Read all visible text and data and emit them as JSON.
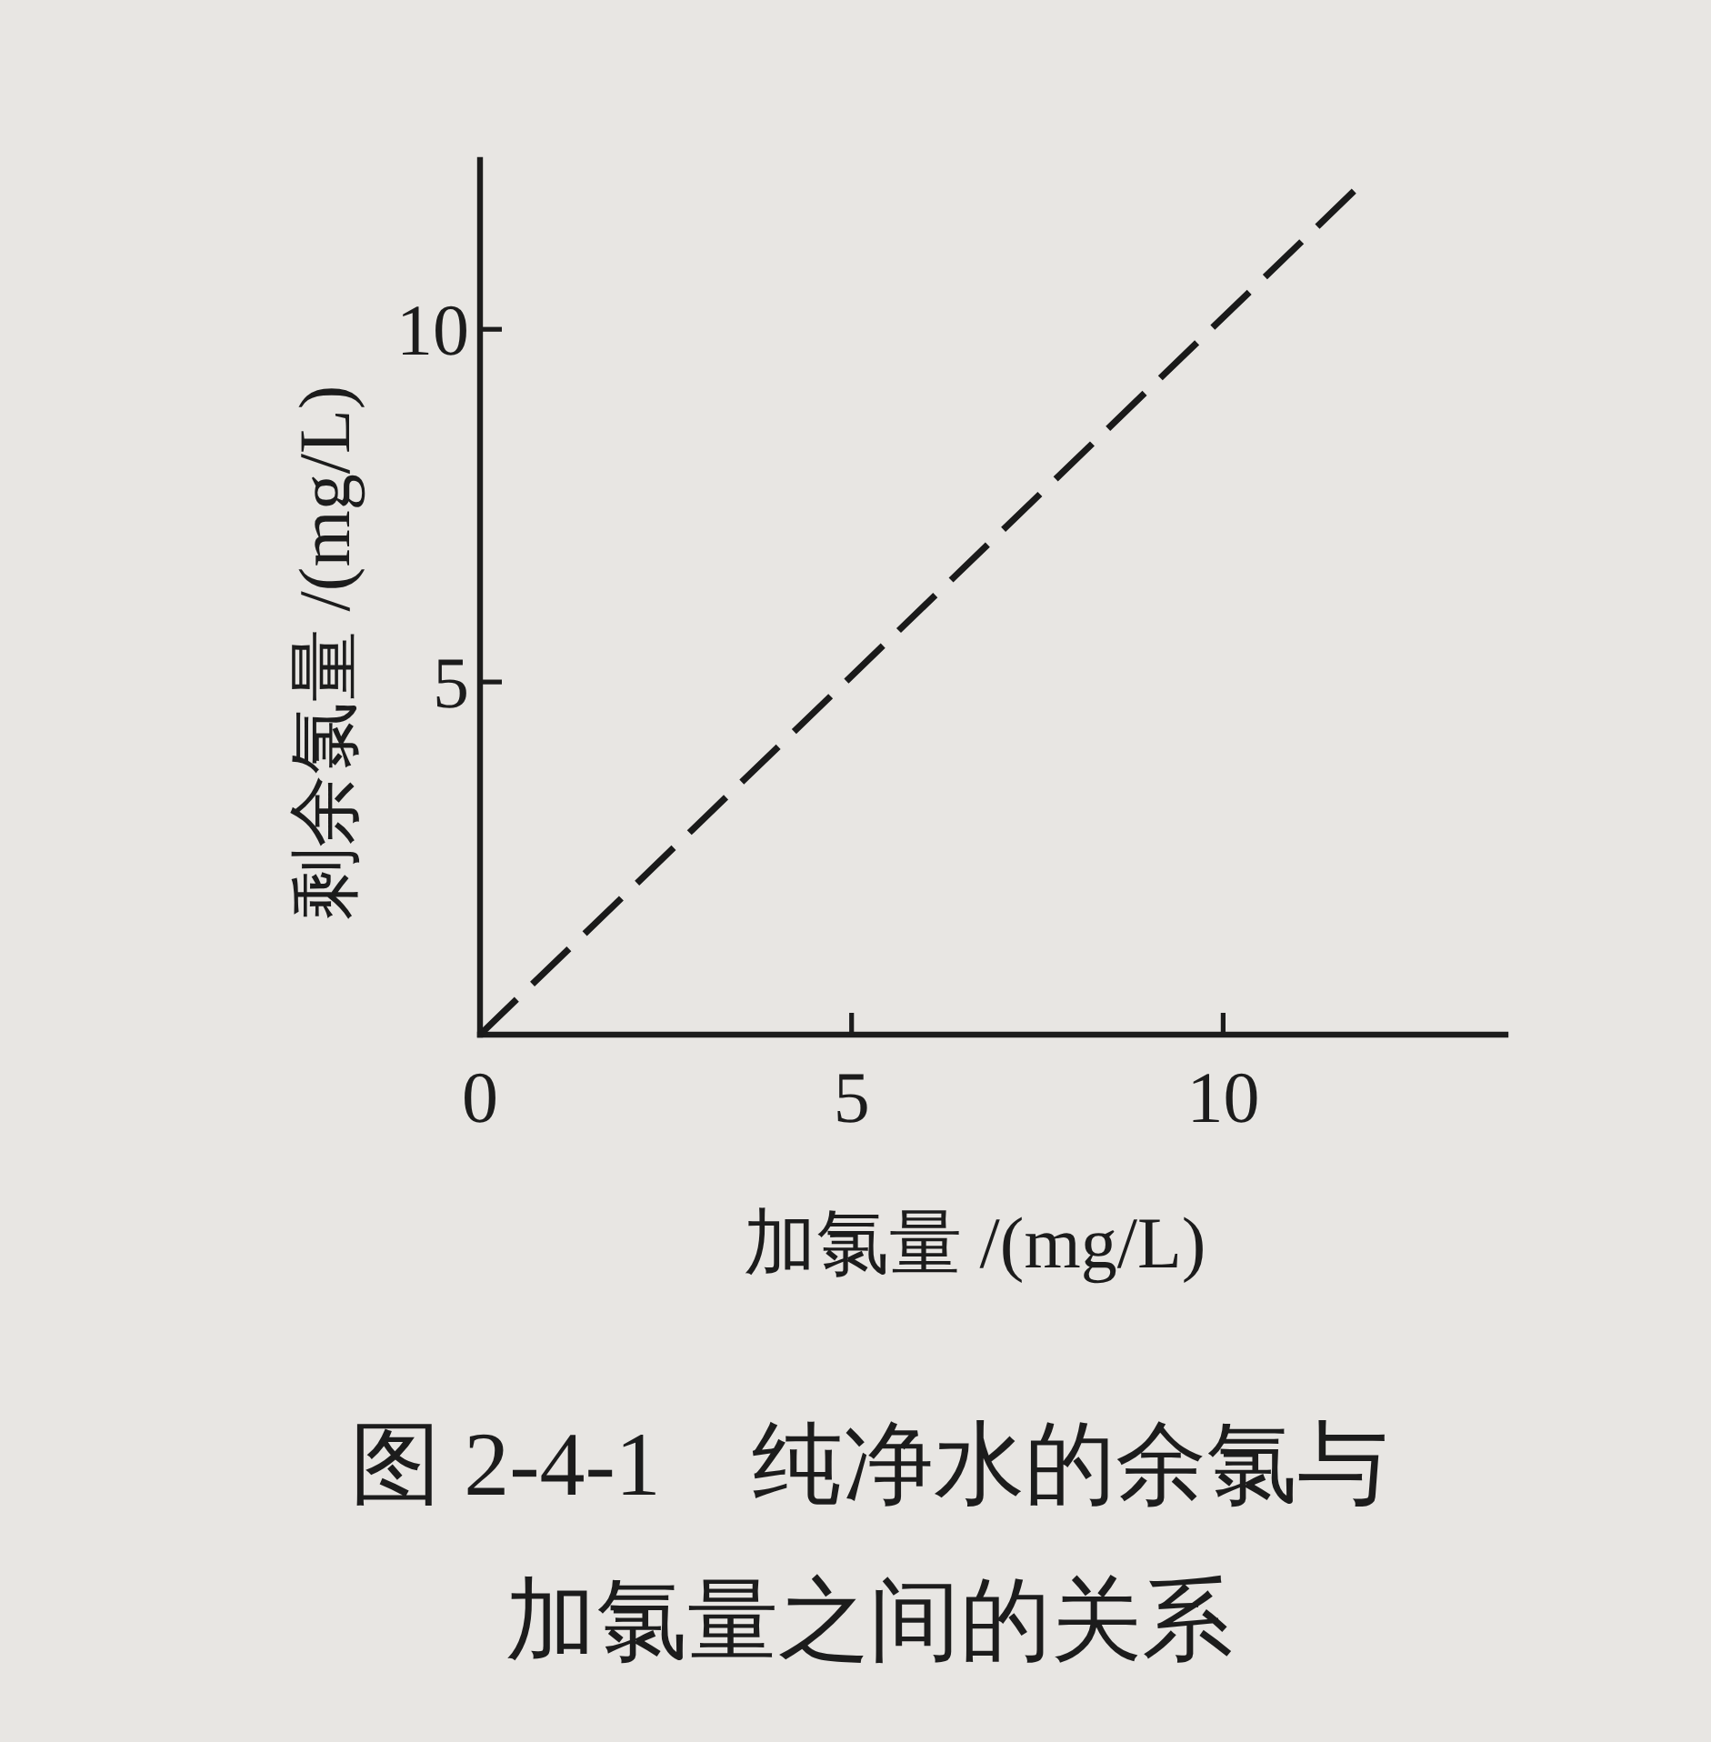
{
  "chart_data": {
    "type": "line",
    "title": "图 2-4-1　纯净水的余氯与加氯量之间的关系",
    "xlabel": "加氯量 /(mg/L)",
    "ylabel": "剩余氯量 /(mg/L)",
    "x": [
      0,
      11.8
    ],
    "series": [
      {
        "color": "#1a1a1a",
        "values": [
          0,
          12
        ]
      }
    ],
    "line_style": "dashed",
    "xlim": [
      0,
      13.8
    ],
    "ylim": [
      0,
      12.4
    ],
    "xticks": [
      0,
      5,
      10
    ],
    "yticks": [
      5,
      10
    ]
  }
}
